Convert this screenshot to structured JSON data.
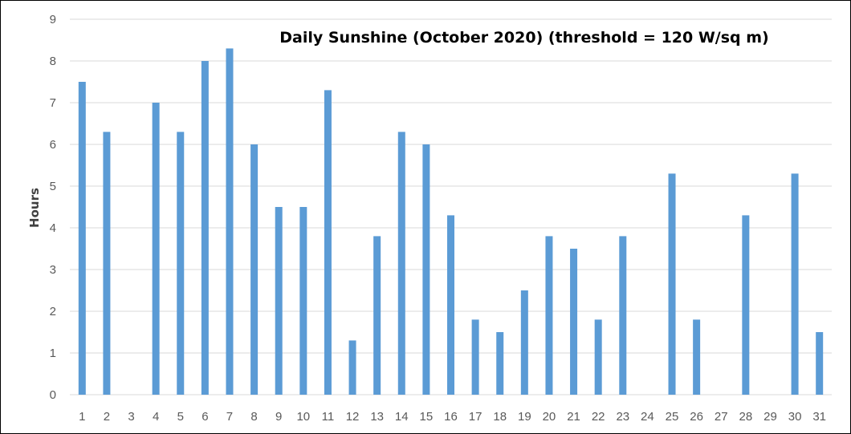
{
  "chart_data": {
    "type": "bar",
    "title": "Daily Sunshine (October 2020) (threshold = 120 W/sq m)",
    "xlabel": "",
    "ylabel": "Hours",
    "ylim": [
      0,
      9
    ],
    "yticks": [
      0,
      1,
      2,
      3,
      4,
      5,
      6,
      7,
      8,
      9
    ],
    "grid": true,
    "legend": "none",
    "bar_color": "#5B9BD5",
    "grid_color": "#D9D9D9",
    "categories": [
      "1",
      "2",
      "3",
      "4",
      "5",
      "6",
      "7",
      "8",
      "9",
      "10",
      "11",
      "12",
      "13",
      "14",
      "15",
      "16",
      "17",
      "18",
      "19",
      "20",
      "21",
      "22",
      "23",
      "24",
      "25",
      "26",
      "27",
      "28",
      "29",
      "30",
      "31"
    ],
    "values": [
      7.5,
      6.3,
      0,
      7.0,
      6.3,
      8.0,
      8.3,
      6.0,
      4.5,
      4.5,
      7.3,
      1.3,
      3.8,
      6.3,
      6.0,
      4.3,
      1.8,
      1.5,
      2.5,
      3.8,
      3.5,
      1.8,
      3.8,
      0,
      5.3,
      1.8,
      0,
      4.3,
      0,
      5.3,
      1.5
    ]
  }
}
